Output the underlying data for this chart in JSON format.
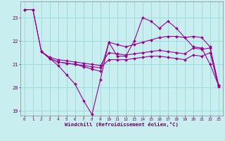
{
  "xlabel": "Windchill (Refroidissement éolien,°C)",
  "background_color": "#c8eef0",
  "grid_color": "#99dddd",
  "line_color": "#990099",
  "xlim": [
    -0.5,
    23.5
  ],
  "ylim": [
    18.8,
    23.7
  ],
  "yticks": [
    19,
    20,
    21,
    22,
    23
  ],
  "xticks": [
    0,
    1,
    2,
    3,
    4,
    5,
    6,
    7,
    8,
    9,
    10,
    11,
    12,
    13,
    14,
    15,
    16,
    17,
    18,
    19,
    20,
    21,
    22,
    23
  ],
  "lines": [
    {
      "x": [
        0,
        1,
        2,
        3,
        4,
        5,
        6,
        7,
        8,
        9,
        10,
        11,
        12,
        13,
        14,
        15,
        16,
        17,
        18,
        19,
        20,
        21,
        22,
        23
      ],
      "y": [
        23.35,
        23.35,
        21.55,
        21.25,
        20.95,
        20.55,
        20.15,
        19.45,
        18.85,
        20.35,
        21.95,
        21.35,
        21.35,
        22.0,
        23.0,
        22.85,
        22.55,
        22.85,
        22.55,
        22.15,
        21.75,
        21.7,
        21.0,
        20.1
      ]
    },
    {
      "x": [
        0,
        1,
        2,
        3,
        4,
        5,
        6,
        7,
        8,
        9,
        10,
        11,
        12,
        13,
        14,
        15,
        16,
        17,
        18,
        19,
        20,
        21,
        22,
        23
      ],
      "y": [
        23.35,
        23.35,
        21.55,
        21.25,
        21.1,
        21.05,
        21.0,
        20.9,
        20.8,
        20.7,
        21.95,
        21.85,
        21.75,
        21.85,
        21.95,
        22.05,
        22.15,
        22.2,
        22.2,
        22.15,
        22.2,
        22.15,
        21.75,
        20.1
      ]
    },
    {
      "x": [
        2,
        3,
        4,
        5,
        6,
        7,
        8,
        9,
        10,
        11,
        12,
        13,
        14,
        15,
        16,
        17,
        18,
        19,
        20,
        21,
        22,
        23
      ],
      "y": [
        21.55,
        21.3,
        21.2,
        21.15,
        21.1,
        21.05,
        21.0,
        20.95,
        21.5,
        21.45,
        21.4,
        21.45,
        21.5,
        21.55,
        21.6,
        21.55,
        21.5,
        21.45,
        21.7,
        21.65,
        21.7,
        20.1
      ]
    },
    {
      "x": [
        2,
        3,
        4,
        5,
        6,
        7,
        8,
        9,
        10,
        11,
        12,
        13,
        14,
        15,
        16,
        17,
        18,
        19,
        20,
        21,
        22,
        23
      ],
      "y": [
        21.55,
        21.25,
        21.1,
        21.05,
        21.0,
        20.95,
        20.9,
        20.85,
        21.2,
        21.2,
        21.2,
        21.25,
        21.3,
        21.35,
        21.35,
        21.3,
        21.25,
        21.2,
        21.4,
        21.35,
        21.5,
        20.05
      ]
    }
  ]
}
